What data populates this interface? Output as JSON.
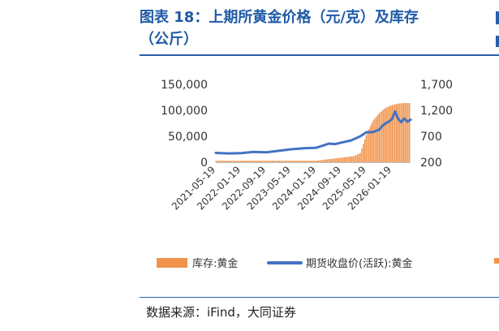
{
  "figure": {
    "title_line1": "图表 18：上期所黄金价格（元/克）及库存",
    "title_line2": "（公斤）",
    "source": "数据来源：iFind，大同证券"
  },
  "colors": {
    "title": "#1f5aa6",
    "rule": "#2a5fa8",
    "bar": "#f0944d",
    "line": "#4472c4"
  },
  "chart_data": {
    "type": "bar+line",
    "title": "上期所黄金价格（元/克）及库存（公斤）",
    "y_left": {
      "ticks": [
        "150,000",
        "100,000",
        "50,000",
        "0"
      ],
      "range": [
        0,
        150000
      ]
    },
    "y_right": {
      "ticks": [
        "1,700",
        "1,200",
        "700",
        "200"
      ],
      "range": [
        200,
        1700
      ]
    },
    "x_ticks": [
      "2021-05-19",
      "2022-01-19",
      "2022-09-19",
      "2023-05-19",
      "2024-01-19",
      "2024-09-19",
      "2025-05-19",
      "2026-01-19"
    ],
    "legend": [
      "库存:黄金",
      "期货收盘价(活跃):黄金"
    ],
    "inventory_series": {
      "name": "库存:黄金",
      "axis": "left",
      "points": [
        [
          "2021-05-19",
          3000
        ],
        [
          "2022-01-19",
          3000
        ],
        [
          "2022-09-19",
          3000
        ],
        [
          "2023-05-19",
          3000
        ],
        [
          "2024-01-19",
          3000
        ],
        [
          "2024-05-19",
          6000
        ],
        [
          "2024-09-19",
          9000
        ],
        [
          "2025-01-19",
          12000
        ],
        [
          "2025-03-19",
          18000
        ],
        [
          "2025-05-19",
          55000
        ],
        [
          "2025-07-19",
          80000
        ],
        [
          "2025-09-19",
          95000
        ],
        [
          "2025-11-19",
          105000
        ],
        [
          "2026-01-19",
          110000
        ],
        [
          "2026-03-19",
          113000
        ],
        [
          "2026-05-19",
          114000
        ]
      ]
    },
    "price_series": {
      "name": "期货收盘价(活跃):黄金",
      "axis": "right",
      "points": [
        [
          "2021-05-19",
          380
        ],
        [
          "2021-09-19",
          370
        ],
        [
          "2022-01-19",
          375
        ],
        [
          "2022-05-19",
          400
        ],
        [
          "2022-09-19",
          390
        ],
        [
          "2023-01-19",
          420
        ],
        [
          "2023-05-19",
          450
        ],
        [
          "2023-09-19",
          470
        ],
        [
          "2024-01-19",
          480
        ],
        [
          "2024-05-19",
          560
        ],
        [
          "2024-07-19",
          550
        ],
        [
          "2024-09-19",
          580
        ],
        [
          "2024-12-19",
          620
        ],
        [
          "2025-03-19",
          700
        ],
        [
          "2025-05-19",
          780
        ],
        [
          "2025-07-19",
          780
        ],
        [
          "2025-09-19",
          830
        ],
        [
          "2025-10-19",
          900
        ],
        [
          "2025-11-19",
          950
        ],
        [
          "2025-12-19",
          980
        ],
        [
          "2026-01-19",
          1030
        ],
        [
          "2026-02-19",
          1180
        ],
        [
          "2026-03-19",
          1040
        ],
        [
          "2026-04-19",
          970
        ],
        [
          "2026-05-19",
          1040
        ],
        [
          "2026-06-19",
          980
        ],
        [
          "2026-07-19",
          1020
        ]
      ]
    }
  }
}
